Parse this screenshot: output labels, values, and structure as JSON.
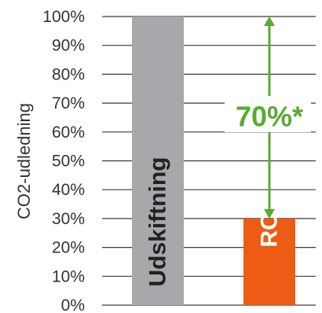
{
  "chart_data": {
    "type": "bar",
    "categories": [
      "Udskiftning",
      "ROS"
    ],
    "values": [
      100,
      30
    ],
    "ylabel": "CO2-udledning",
    "ylim": [
      0,
      100
    ],
    "yticks": [
      "0%",
      "10%",
      "20%",
      "30%",
      "40%",
      "50%",
      "60%",
      "70%",
      "80%",
      "90%",
      "100%"
    ],
    "grid": true,
    "bar_colors": [
      "#a7a8ac",
      "#ee5b14"
    ],
    "bar_label_colors": [
      "#222222",
      "#ffffff"
    ],
    "annotation": {
      "text": "70%*",
      "from_value": 100,
      "to_value": 30,
      "color": "#5aaa32"
    }
  }
}
